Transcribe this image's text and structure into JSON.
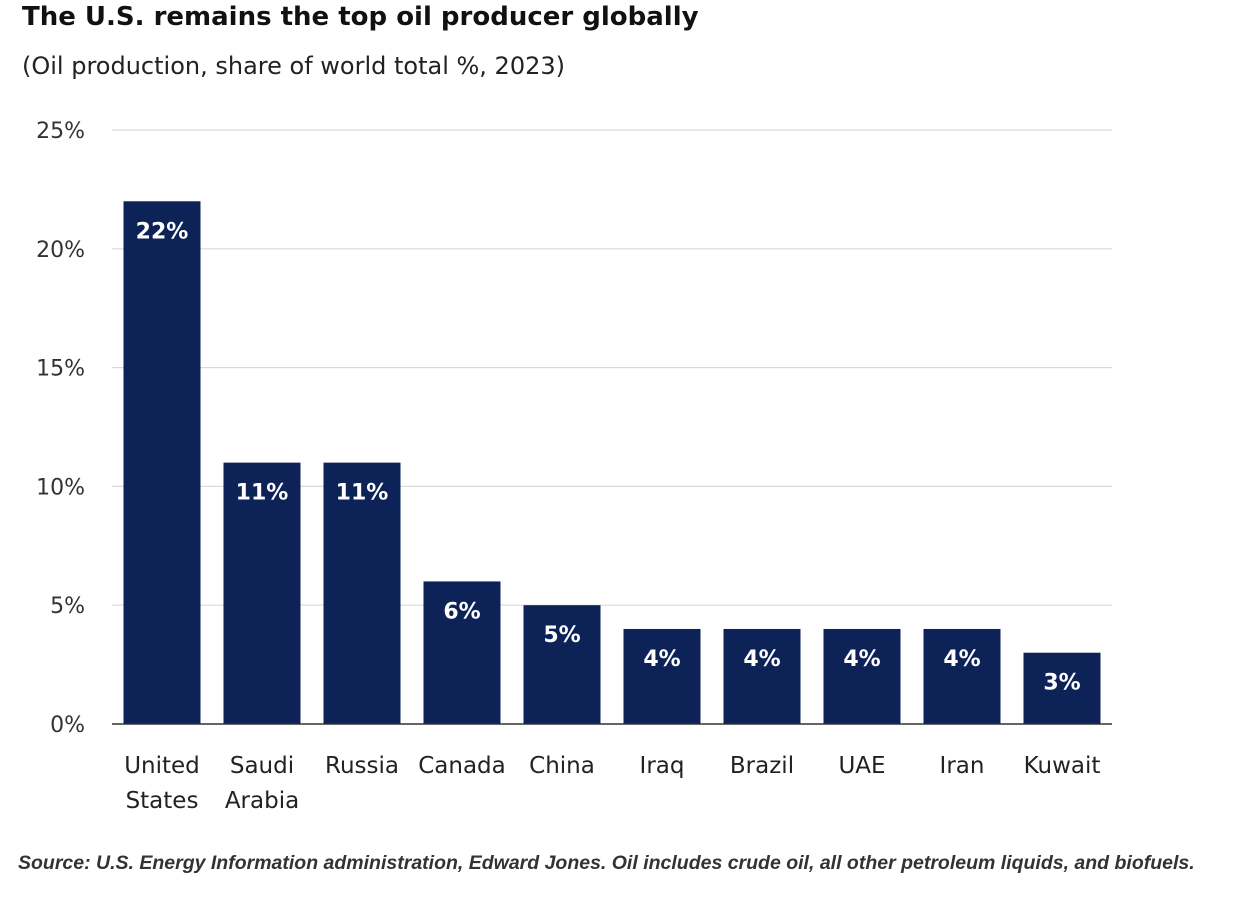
{
  "header": {
    "title": "The U.S. remains the top oil producer globally",
    "subtitle": "(Oil production, share of world total %, 2023)"
  },
  "footer": {
    "source": "Source: U.S. Energy Information administration, Edward Jones. Oil includes crude oil, all other petroleum liquids, and biofuels."
  },
  "colors": {
    "bar": "#0d2257",
    "grid": "#d9d9d9",
    "axis": "#333333"
  },
  "chart_data": {
    "type": "bar",
    "title": "The U.S. remains the top oil producer globally",
    "subtitle": "(Oil production, share of world total %, 2023)",
    "categories": [
      [
        "United",
        "States"
      ],
      [
        "Saudi",
        "Arabia"
      ],
      [
        "Russia"
      ],
      [
        "Canada"
      ],
      [
        "China"
      ],
      [
        "Iraq"
      ],
      [
        "Brazil"
      ],
      [
        "UAE"
      ],
      [
        "Iran"
      ],
      [
        "Kuwait"
      ]
    ],
    "values": [
      22,
      11,
      11,
      6,
      5,
      4,
      4,
      4,
      4,
      3
    ],
    "data_labels": [
      "22%",
      "11%",
      "11%",
      "6%",
      "5%",
      "4%",
      "4%",
      "4%",
      "4%",
      "3%"
    ],
    "ylim": [
      0,
      25
    ],
    "yticks": [
      0,
      5,
      10,
      15,
      20,
      25
    ],
    "ytick_labels": [
      "0%",
      "5%",
      "10%",
      "15%",
      "20%",
      "25%"
    ],
    "grid": true,
    "legend": "none"
  }
}
